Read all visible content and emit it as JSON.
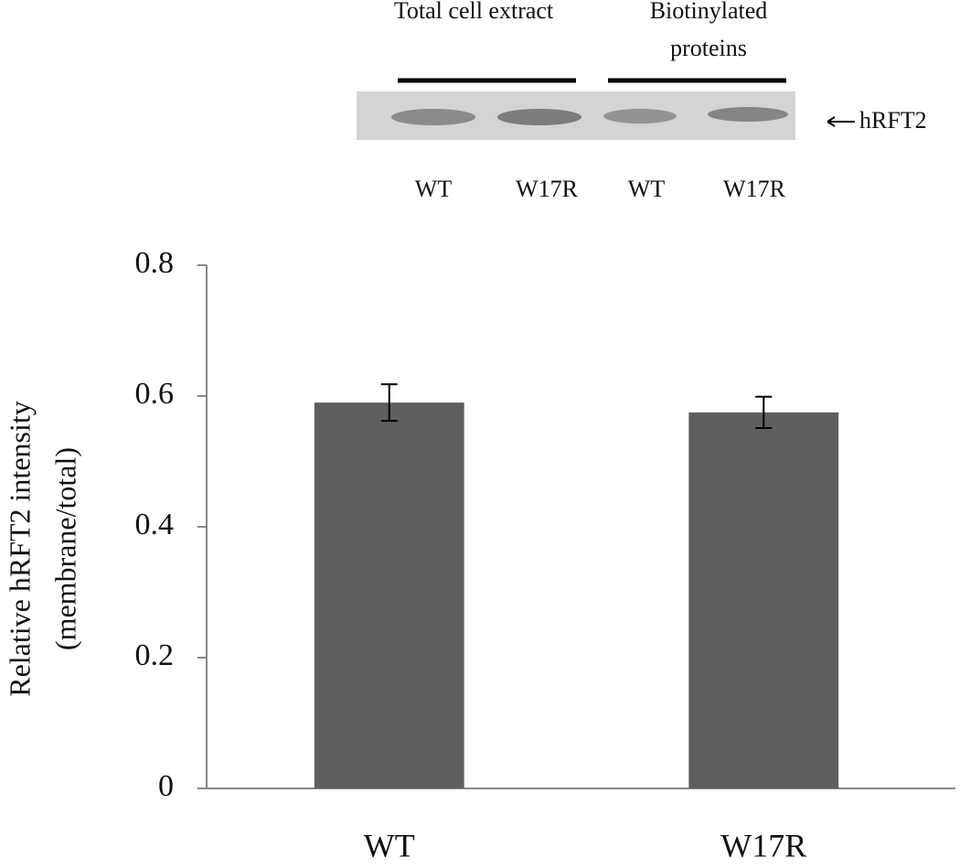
{
  "blot": {
    "group_labels": [
      "Total cell extract",
      "Biotinylated",
      "proteins"
    ],
    "band_label": "hRFT2",
    "lane_labels": [
      "WT",
      "W17R",
      "WT",
      "W17R"
    ]
  },
  "chart_data": {
    "type": "bar",
    "categories": [
      "WT",
      "W17R"
    ],
    "values": [
      0.59,
      0.575
    ],
    "errors": [
      0.028,
      0.024
    ],
    "color": "#5f5f5f",
    "ylim": [
      0,
      0.8
    ],
    "yticks": [
      0,
      0.2,
      0.4,
      0.6,
      0.8
    ],
    "y_label": [
      "Relative hRFT2 intensity",
      "(membrane/total)"
    ]
  }
}
